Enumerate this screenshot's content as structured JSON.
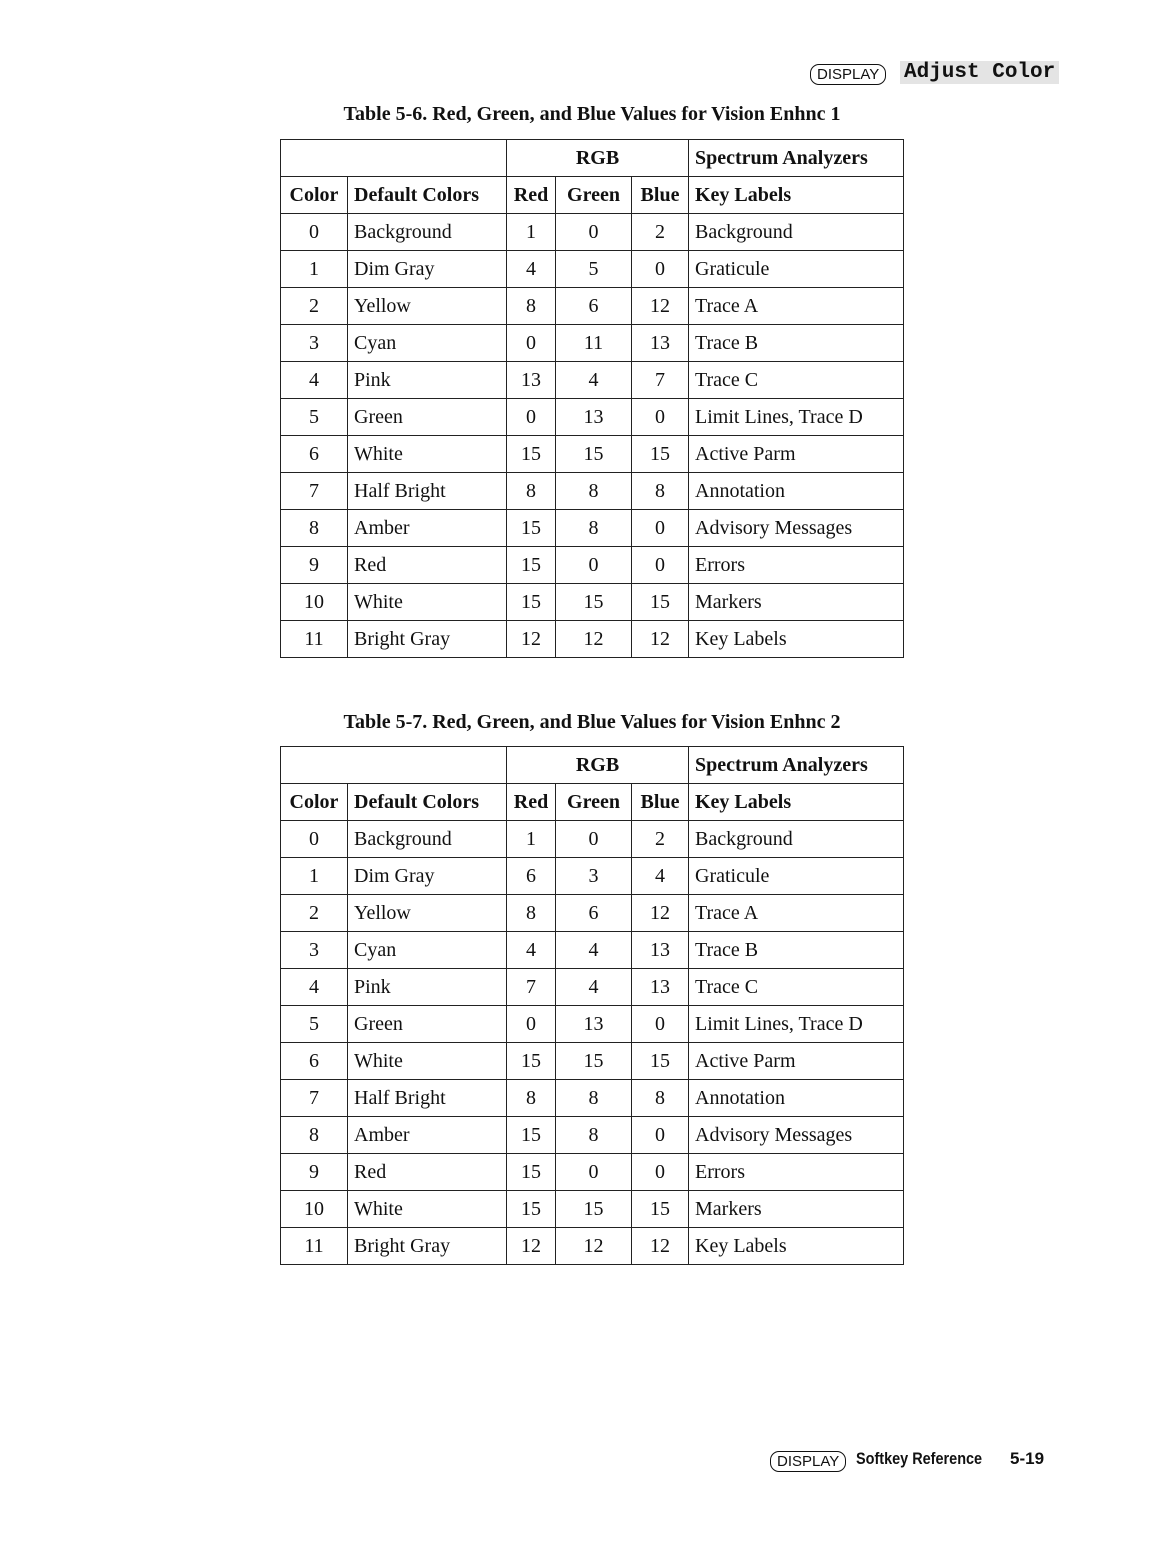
{
  "header": {
    "key": "DISPLAY",
    "title": "Adjust Color"
  },
  "tables": [
    {
      "title": "Table 5-6. Red, Green, and Blue Values for Vision Enhnc 1",
      "group_header": {
        "rgb": "RGB",
        "analyzers": "Spectrum Analyzers"
      },
      "columns": [
        "Color",
        "Default Colors",
        "Red",
        "Green",
        "Blue",
        "Key Labels"
      ],
      "rows": [
        [
          0,
          "Background",
          1,
          0,
          2,
          "Background"
        ],
        [
          1,
          "Dim Gray",
          4,
          5,
          0,
          "Graticule"
        ],
        [
          2,
          "Yellow",
          8,
          6,
          12,
          "Trace A"
        ],
        [
          3,
          "Cyan",
          0,
          11,
          13,
          "Trace B"
        ],
        [
          4,
          "Pink",
          13,
          4,
          7,
          "Trace C"
        ],
        [
          5,
          "Green",
          0,
          13,
          0,
          "Limit Lines, Trace D"
        ],
        [
          6,
          "White",
          15,
          15,
          15,
          "Active Parm"
        ],
        [
          7,
          "Half Bright",
          8,
          8,
          8,
          "Annotation"
        ],
        [
          8,
          "Amber",
          15,
          8,
          0,
          "Advisory Messages"
        ],
        [
          9,
          "Red",
          15,
          0,
          0,
          "Errors"
        ],
        [
          10,
          "White",
          15,
          15,
          15,
          "Markers"
        ],
        [
          11,
          "Bright Gray",
          12,
          12,
          12,
          "Key Labels"
        ]
      ]
    },
    {
      "title": "Table 5-7. Red, Green, and Blue Values for Vision Enhnc 2",
      "group_header": {
        "rgb": "RGB",
        "analyzers": "Spectrum Analyzers"
      },
      "columns": [
        "Color",
        "Default Colors",
        "Red",
        "Green",
        "Blue",
        "Key Labels"
      ],
      "rows": [
        [
          0,
          "Background",
          1,
          0,
          2,
          "Background"
        ],
        [
          1,
          "Dim Gray",
          6,
          3,
          4,
          "Graticule"
        ],
        [
          2,
          "Yellow",
          8,
          6,
          12,
          "Trace A"
        ],
        [
          3,
          "Cyan",
          4,
          4,
          13,
          "Trace B"
        ],
        [
          4,
          "Pink",
          7,
          4,
          13,
          "Trace C"
        ],
        [
          5,
          "Green",
          0,
          13,
          0,
          "Limit Lines, Trace D"
        ],
        [
          6,
          "White",
          15,
          15,
          15,
          "Active Parm"
        ],
        [
          7,
          "Half Bright",
          8,
          8,
          8,
          "Annotation"
        ],
        [
          8,
          "Amber",
          15,
          8,
          0,
          "Advisory Messages"
        ],
        [
          9,
          "Red",
          15,
          0,
          0,
          "Errors"
        ],
        [
          10,
          "White",
          15,
          15,
          15,
          "Markers"
        ],
        [
          11,
          "Bright Gray",
          12,
          12,
          12,
          "Key Labels"
        ]
      ]
    }
  ],
  "footer": {
    "key": "DISPLAY",
    "title": "Softkey Reference",
    "page": "5-19"
  }
}
